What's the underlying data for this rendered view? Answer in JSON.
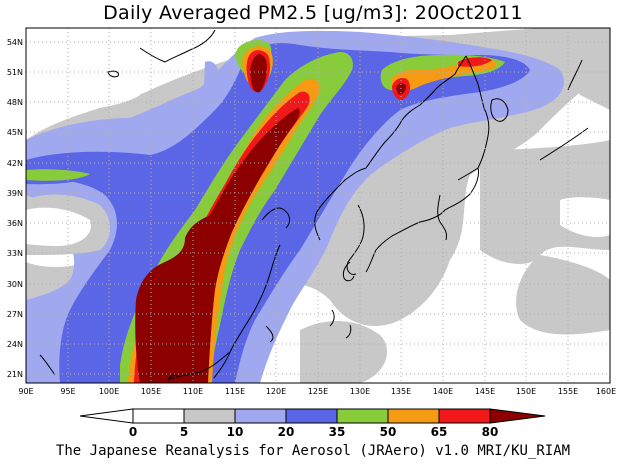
{
  "title": "Daily Averaged PM2.5 [ug/m3]: 20Oct2011",
  "credit": "The Japanese Reanalysis for Aerosol (JRAero) v1.0 MRI/KU_RIAM",
  "lat_ticks": [
    "54N",
    "51N",
    "48N",
    "45N",
    "42N",
    "39N",
    "36N",
    "33N",
    "30N",
    "27N",
    "24N",
    "21N"
  ],
  "lon_ticks": [
    "90E",
    "95E",
    "100E",
    "105E",
    "110E",
    "115E",
    "120E",
    "125E",
    "130E",
    "135E",
    "140E",
    "145E",
    "150E",
    "155E",
    "160E"
  ],
  "colorbar": {
    "labels": [
      "0",
      "5",
      "10",
      "20",
      "35",
      "50",
      "65",
      "80"
    ],
    "bins": [
      {
        "range": "<0",
        "color": "#ffffff"
      },
      {
        "range": "0-5",
        "color": "#ffffff"
      },
      {
        "range": "5-10",
        "color": "#c8c8c8"
      },
      {
        "range": "10-20",
        "color": "#a0a8f0"
      },
      {
        "range": "20-35",
        "color": "#5a66e6"
      },
      {
        "range": "35-50",
        "color": "#88cc3c"
      },
      {
        "range": "50-65",
        "color": "#f59a12"
      },
      {
        "range": "65-80",
        "color": "#f01818"
      },
      {
        "range": ">80",
        "color": "#8c0000"
      }
    ]
  },
  "map": {
    "lon_range": [
      90,
      160
    ],
    "lat_range": [
      20,
      55
    ],
    "grid": "dotted every 5 deg lon / 3 deg lat",
    "features": [
      "coastlines",
      "pm25-filled-contours"
    ]
  }
}
